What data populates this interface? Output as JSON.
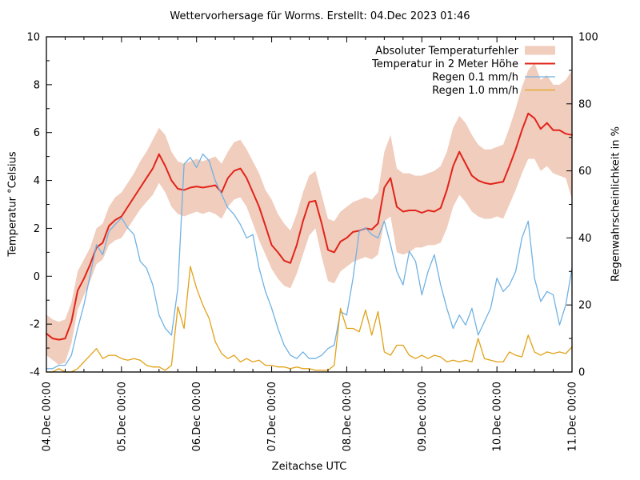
{
  "title": "Wettervorhersage für Worms. Erstellt: 04.Dec 2023 01:46",
  "axes": {
    "x_label": "Zeitachse UTC",
    "y_left_label": "Temperatur °Celsius",
    "y_right_label": "Regenwahrscheinlichkeit in %",
    "y_left_ticks": [
      10,
      8,
      6,
      4,
      2,
      0,
      -2,
      -4
    ],
    "y_right_ticks": [
      100,
      80,
      60,
      40,
      20,
      0
    ],
    "x_tick_labels": [
      "04.Dec 00:00",
      "05.Dec 00:00",
      "06.Dec 00:00",
      "07.Dec 00:00",
      "08.Dec 00:00",
      "09.Dec 00:00",
      "10.Dec 00:00",
      "11.Dec 00:00"
    ]
  },
  "legend": [
    {
      "label": "Absoluter Temperaturfehler",
      "type": "band",
      "color": "#f0cdbd"
    },
    {
      "label": "Temperatur in 2 Meter Höhe",
      "type": "line",
      "color": "#e2231a"
    },
    {
      "label": "Regen 0.1 mm/h",
      "type": "line",
      "color": "#70b2e3"
    },
    {
      "label": "Regen 1.0 mm/h",
      "type": "line",
      "color": "#e2a117"
    }
  ],
  "chart_data": {
    "type": "line",
    "title": "Wettervorhersage für Worms. Erstellt: 04.Dec 2023 01:46",
    "xlabel": "Zeitachse UTC",
    "ylabel_left": "Temperatur °Celsius",
    "ylabel_right": "Regenwahrscheinlichkeit in %",
    "x_unit": "hours since 04.Dec 00:00 UTC",
    "x_start": 0,
    "x_step": 2,
    "x_end": 168,
    "y_left_range": [
      -4,
      10
    ],
    "y_right_range": [
      0,
      100
    ],
    "grid": false,
    "legend_position": "top-right-inside",
    "series": [
      {
        "name": "Absoluter Temperaturfehler",
        "axis": "left",
        "type": "band",
        "color": "#f0cdbd",
        "upper": [
          -1.6,
          -1.8,
          -1.9,
          -1.8,
          -1.1,
          0.2,
          0.7,
          1.2,
          2.0,
          2.2,
          2.9,
          3.3,
          3.5,
          3.9,
          4.3,
          4.8,
          5.2,
          5.7,
          6.2,
          5.9,
          5.2,
          4.8,
          4.7,
          4.8,
          4.9,
          4.8,
          4.9,
          5.0,
          4.7,
          5.2,
          5.6,
          5.7,
          5.3,
          4.8,
          4.3,
          3.6,
          3.2,
          2.6,
          2.2,
          1.9,
          2.6,
          3.5,
          4.2,
          4.4,
          3.4,
          2.4,
          2.3,
          2.7,
          2.9,
          3.1,
          3.2,
          3.3,
          3.2,
          3.5,
          5.2,
          5.9,
          4.5,
          4.3,
          4.3,
          4.2,
          4.2,
          4.3,
          4.4,
          4.6,
          5.2,
          6.2,
          6.7,
          6.4,
          5.9,
          5.5,
          5.3,
          5.3,
          5.4,
          5.5,
          6.2,
          7.0,
          7.9,
          8.6,
          8.9,
          8.2,
          8.4,
          8.0,
          8.0,
          8.2,
          8.6
        ],
        "lower": [
          -3.3,
          -3.5,
          -3.7,
          -3.6,
          -2.8,
          -1.4,
          -0.8,
          -0.2,
          0.5,
          0.7,
          1.3,
          1.5,
          1.6,
          2.0,
          2.4,
          2.8,
          3.1,
          3.4,
          3.9,
          3.5,
          2.9,
          2.6,
          2.5,
          2.6,
          2.7,
          2.6,
          2.7,
          2.6,
          2.4,
          2.9,
          3.2,
          3.3,
          2.9,
          2.2,
          1.5,
          0.9,
          0.3,
          -0.1,
          -0.4,
          -0.5,
          0.1,
          0.9,
          1.7,
          2.0,
          0.8,
          -0.2,
          -0.3,
          0.2,
          0.4,
          0.6,
          0.7,
          0.8,
          0.7,
          0.9,
          2.3,
          2.5,
          1.0,
          0.9,
          1.0,
          1.2,
          1.2,
          1.3,
          1.3,
          1.4,
          2.0,
          2.9,
          3.4,
          3.1,
          2.7,
          2.5,
          2.4,
          2.4,
          2.5,
          2.4,
          3.0,
          3.6,
          4.3,
          4.9,
          4.9,
          4.4,
          4.6,
          4.3,
          4.2,
          4.1,
          3.2
        ]
      },
      {
        "name": "Temperatur in 2 Meter Höhe",
        "axis": "left",
        "type": "line",
        "color": "#e2231a",
        "values": [
          -2.4,
          -2.6,
          -2.65,
          -2.6,
          -1.9,
          -0.6,
          -0.1,
          0.5,
          1.2,
          1.4,
          2.1,
          2.35,
          2.5,
          2.9,
          3.3,
          3.7,
          4.1,
          4.5,
          5.1,
          4.6,
          4.0,
          3.65,
          3.6,
          3.7,
          3.75,
          3.7,
          3.75,
          3.8,
          3.5,
          4.1,
          4.4,
          4.5,
          4.1,
          3.5,
          2.9,
          2.1,
          1.3,
          1.0,
          0.65,
          0.55,
          1.3,
          2.3,
          3.1,
          3.15,
          2.2,
          1.1,
          1.0,
          1.45,
          1.6,
          1.85,
          1.9,
          2.0,
          1.95,
          2.2,
          3.7,
          4.1,
          2.9,
          2.7,
          2.75,
          2.75,
          2.65,
          2.75,
          2.7,
          2.85,
          3.6,
          4.6,
          5.2,
          4.7,
          4.2,
          4.0,
          3.9,
          3.85,
          3.9,
          3.95,
          4.6,
          5.3,
          6.1,
          6.8,
          6.6,
          6.15,
          6.4,
          6.1,
          6.1,
          5.95,
          5.9
        ]
      },
      {
        "name": "Regen 0.1 mm/h",
        "axis": "right",
        "type": "line",
        "color": "#70b2e3",
        "values": [
          1,
          1,
          2,
          2,
          5,
          13,
          20,
          29,
          38,
          35,
          42,
          44,
          46,
          43,
          41,
          33,
          31,
          26,
          17,
          13,
          11,
          25,
          62,
          64,
          61,
          65,
          63,
          57,
          53,
          49,
          47,
          44,
          40,
          41,
          31,
          24,
          19,
          13,
          8,
          5,
          4,
          6,
          4,
          4,
          5,
          7,
          8,
          18,
          17,
          28,
          42,
          43,
          41,
          40,
          45,
          38,
          30,
          26,
          36,
          33,
          23,
          30,
          35,
          26,
          19,
          13,
          17,
          14,
          19,
          11,
          15,
          19,
          28,
          24,
          26,
          30,
          40,
          45,
          28,
          21,
          24,
          23,
          14,
          20,
          31
        ]
      },
      {
        "name": "Regen 1.0 mm/h",
        "axis": "right",
        "type": "line",
        "color": "#e2a117",
        "values": [
          0,
          0,
          1,
          0,
          0,
          1,
          3,
          5,
          7,
          4,
          5,
          5,
          4,
          3.5,
          4,
          3.5,
          2,
          1.5,
          1.5,
          0.5,
          2,
          19.5,
          13,
          31.5,
          25,
          20,
          16,
          9,
          5.5,
          4,
          5,
          3,
          4,
          3,
          3.5,
          2,
          2,
          1.5,
          1.5,
          1,
          1.5,
          1,
          1,
          0.5,
          0.5,
          0.5,
          2,
          19,
          13,
          13,
          12,
          18.5,
          11,
          18,
          6,
          5,
          8,
          8,
          5,
          4,
          5,
          4,
          5,
          4.5,
          3,
          3.5,
          3,
          3.5,
          3,
          10,
          4,
          3.5,
          3,
          3,
          6,
          5,
          4.5,
          11,
          6,
          5,
          6,
          5.5,
          6,
          5.5,
          7.5
        ]
      }
    ]
  }
}
